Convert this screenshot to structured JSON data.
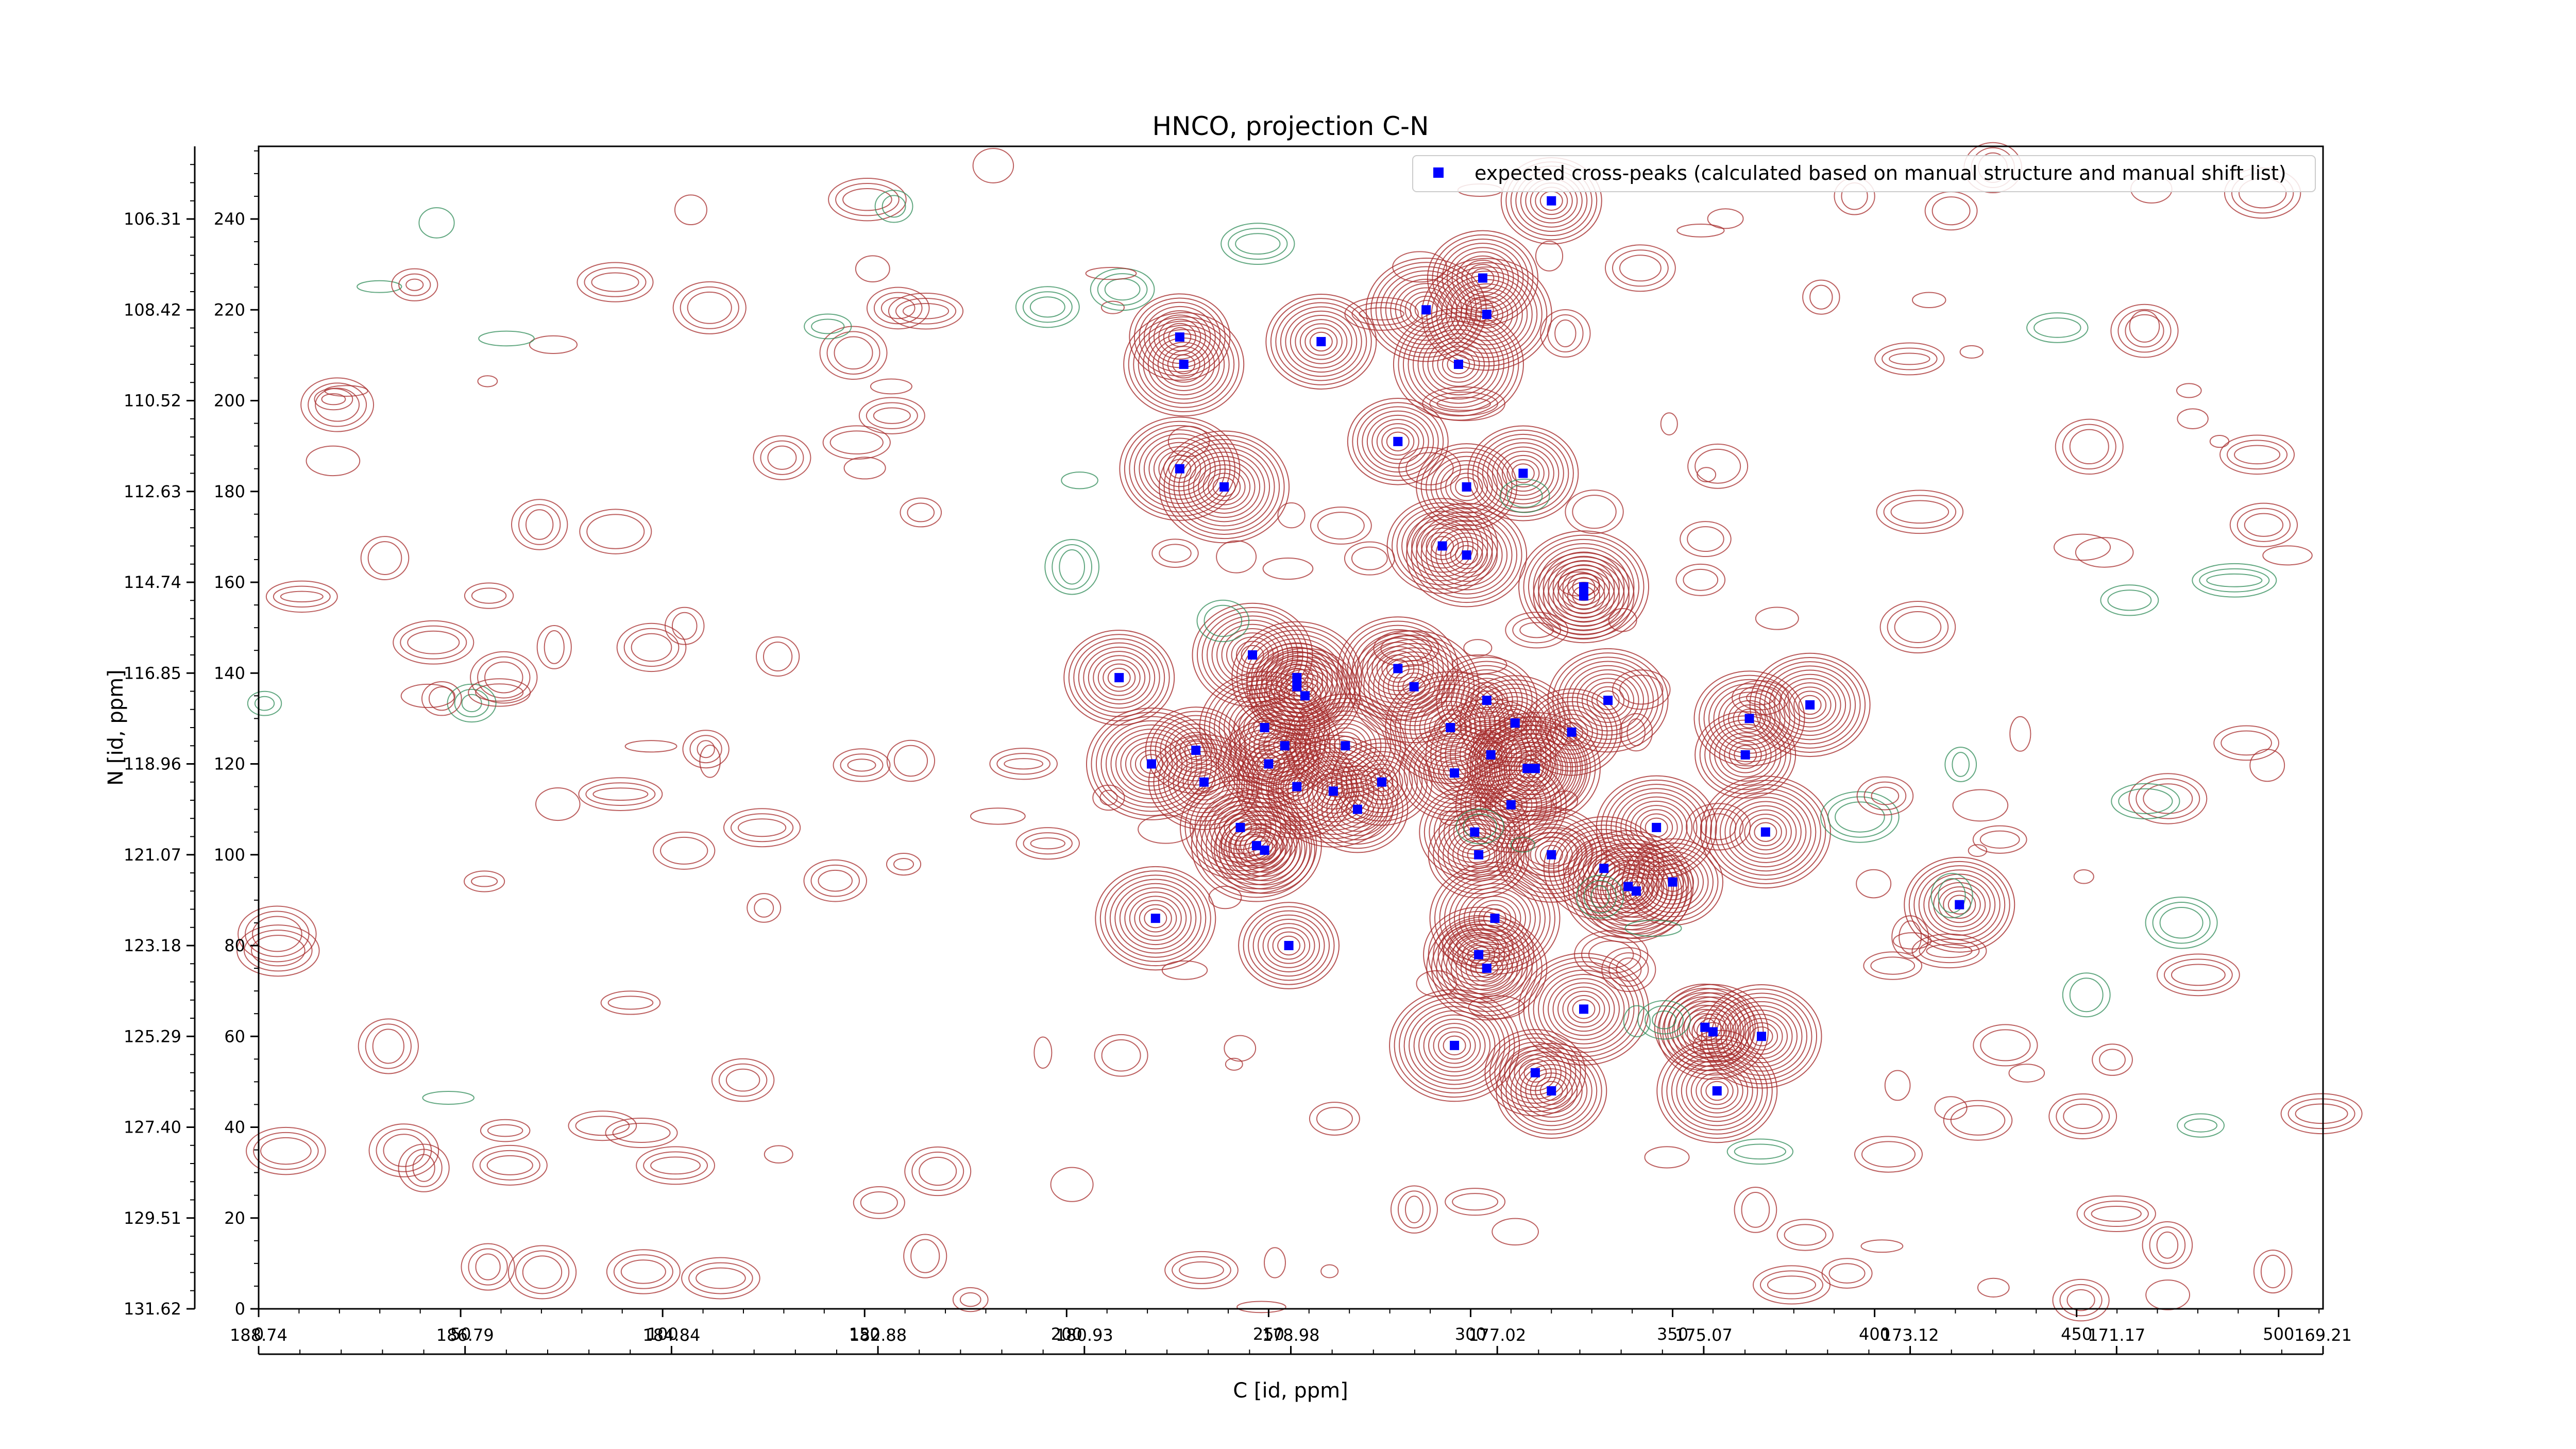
{
  "chart_data": {
    "type": "scatter",
    "title": "HNCO, projection C-N",
    "xlabel": "C [id, ppm]",
    "ylabel": "N [id, ppm]",
    "xlim": [
      0,
      511
    ],
    "ylim": [
      0,
      256
    ],
    "x_ticks": [
      0,
      50,
      100,
      150,
      200,
      250,
      300,
      350,
      400,
      450,
      500
    ],
    "y_ticks": [
      0,
      20,
      40,
      60,
      80,
      100,
      120,
      140,
      160,
      180,
      200,
      220,
      240
    ],
    "x_ppm_ticks": [
      "188.74",
      "186.79",
      "184.84",
      "182.88",
      "180.93",
      "178.98",
      "177.02",
      "175.07",
      "173.12",
      "171.17",
      "169.21"
    ],
    "y_ppm_ticks": [
      "131.62",
      "129.51",
      "127.40",
      "125.29",
      "123.18",
      "121.07",
      "118.96",
      "116.85",
      "114.74",
      "112.63",
      "110.52",
      "108.42",
      "106.31"
    ],
    "legend": {
      "label": "expected cross-peaks (calculated based on manual structure and manual shift list)",
      "placement": "top-right",
      "marker_color": "#0000ff"
    },
    "colors": {
      "positive_contour": "#a52a2a",
      "negative_contour": "#2e8b57",
      "marker": "#0000ff"
    },
    "series": [
      {
        "name": "expected cross-peaks (calculated based on manual structure and manual shift list)",
        "points": [
          [
            320,
            244
          ],
          [
            303,
            227
          ],
          [
            289,
            220
          ],
          [
            304,
            219
          ],
          [
            228,
            214
          ],
          [
            263,
            213
          ],
          [
            229,
            208
          ],
          [
            297,
            208
          ],
          [
            282,
            191
          ],
          [
            313,
            184
          ],
          [
            228,
            185
          ],
          [
            239,
            181
          ],
          [
            299,
            181
          ],
          [
            293,
            168
          ],
          [
            299,
            166
          ],
          [
            328,
            159
          ],
          [
            328,
            157
          ],
          [
            213,
            139
          ],
          [
            246,
            144
          ],
          [
            257,
            139
          ],
          [
            257,
            137
          ],
          [
            259,
            135
          ],
          [
            282,
            141
          ],
          [
            286,
            137
          ],
          [
            304,
            134
          ],
          [
            311,
            129
          ],
          [
            334,
            134
          ],
          [
            295,
            128
          ],
          [
            325,
            127
          ],
          [
            369,
            130
          ],
          [
            384,
            133
          ],
          [
            249,
            128
          ],
          [
            232,
            123
          ],
          [
            254,
            124
          ],
          [
            269,
            124
          ],
          [
            305,
            122
          ],
          [
            250,
            120
          ],
          [
            234,
            116
          ],
          [
            257,
            115
          ],
          [
            266,
            114
          ],
          [
            278,
            116
          ],
          [
            296,
            118
          ],
          [
            314,
            119
          ],
          [
            316,
            119
          ],
          [
            272,
            110
          ],
          [
            310,
            111
          ],
          [
            243,
            106
          ],
          [
            247,
            102
          ],
          [
            249,
            101
          ],
          [
            301,
            105
          ],
          [
            346,
            106
          ],
          [
            373,
            105
          ],
          [
            302,
            100
          ],
          [
            320,
            100
          ],
          [
            333,
            97
          ],
          [
            339,
            93
          ],
          [
            350,
            94
          ],
          [
            421,
            89
          ],
          [
            222,
            86
          ],
          [
            306,
            86
          ],
          [
            255,
            80
          ],
          [
            302,
            78
          ],
          [
            304,
            75
          ],
          [
            328,
            66
          ],
          [
            358,
            62
          ],
          [
            360,
            61
          ],
          [
            372,
            60
          ],
          [
            296,
            58
          ],
          [
            316,
            52
          ],
          [
            320,
            48
          ],
          [
            361,
            48
          ],
          [
            221,
            120
          ],
          [
            368,
            122
          ],
          [
            341,
            92
          ]
        ]
      }
    ]
  }
}
